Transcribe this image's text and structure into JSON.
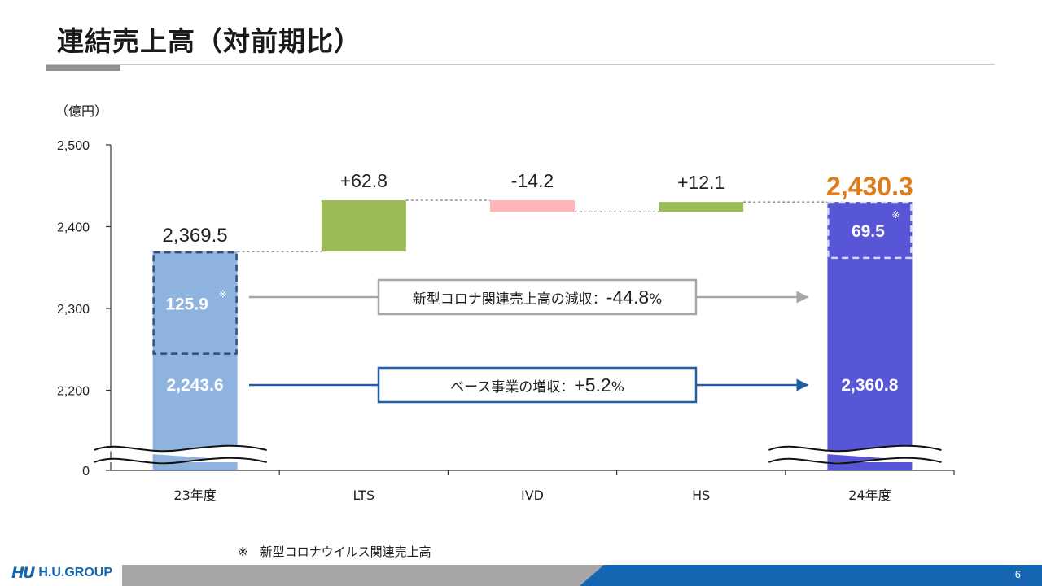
{
  "page": {
    "title": "連結売上高（対前期比）",
    "footnote": "※　新型コロナウイルス関連売上高",
    "page_number": "6",
    "logo_mark": "HU",
    "logo_text": "H.U.GROUP"
  },
  "chart_data": {
    "type": "bar",
    "ylabel": "（億円）",
    "ylim": [
      2150,
      2500
    ],
    "y_ticks": [
      {
        "value": 2500,
        "label": "2,500"
      },
      {
        "value": 2400,
        "label": "2,400"
      },
      {
        "value": 2300,
        "label": "2,300"
      },
      {
        "value": 2200,
        "label": "2,200"
      },
      {
        "value": 0,
        "label": "0"
      }
    ],
    "axis_break": true,
    "categories": [
      "23年度",
      "LTS",
      "IVD",
      "HS",
      "24年度"
    ],
    "totals": [
      {
        "category": "23年度",
        "total": 2369.5,
        "total_label": "2,369.5",
        "base": 2243.6,
        "base_label": "2,243.6",
        "covid": 125.9,
        "covid_label": "125.9"
      },
      {
        "category": "24年度",
        "total": 2430.3,
        "total_label": "2,430.3",
        "base": 2360.8,
        "base_label": "2,360.8",
        "covid": 69.5,
        "covid_label": "69.5"
      }
    ],
    "changes": [
      {
        "category": "LTS",
        "value": 62.8,
        "label": "+62.8"
      },
      {
        "category": "IVD",
        "value": -14.2,
        "label": "-14.2"
      },
      {
        "category": "HS",
        "value": 12.1,
        "label": "+12.1"
      }
    ],
    "covid_marker": "※",
    "annotations": [
      {
        "text": "新型コロナ関連売上高の減収：",
        "value": "-44.8",
        "unit": "%"
      },
      {
        "text": "ベース事業の増収：",
        "value": "+5.2",
        "unit": "%"
      }
    ],
    "colors": {
      "base_23": "#8eb3df",
      "covid_23": "#8eb3df",
      "base_24": "#5656d6",
      "covid_24": "#5656d6",
      "increase": "#9bbb59",
      "decrease": "#ffb6b9",
      "highlight_total": "#e07b1a",
      "arrow_gray": "#a6a6a6",
      "arrow_blue": "#1f5fa8"
    }
  }
}
